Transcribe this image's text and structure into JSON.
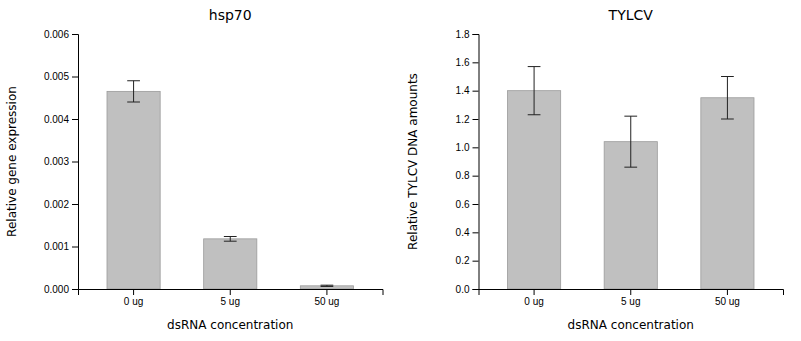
{
  "chart_data": [
    {
      "type": "bar",
      "title": "hsp70",
      "categories": [
        "0 ug",
        "5 ug",
        "50 ug"
      ],
      "values": [
        0.00465,
        0.00118,
        7.5e-05
      ],
      "errors": [
        0.00025,
        5.5e-05,
        1.5e-05
      ],
      "ylabel": "Relative gene expression",
      "xlabel": "dsRNA concentration",
      "ylim": [
        0,
        0.006
      ],
      "yticks": [
        {
          "value": 0,
          "label": "0.000"
        },
        0.001,
        0.002,
        0.003,
        0.004,
        0.005,
        0.006
      ],
      "color": "#c0c0c0",
      "grid": false
    },
    {
      "type": "bar",
      "title": "TYLCV",
      "categories": [
        "0 ug",
        "5 ug",
        "50 ug"
      ],
      "values": [
        1.4,
        1.04,
        1.35
      ],
      "errors": [
        0.17,
        0.18,
        0.15
      ],
      "ylabel": "Relative TYLCV DNA amounts",
      "xlabel": "dsRNA concentration",
      "ylim": [
        0.0,
        1.8
      ],
      "yticks": [
        {
          "value": 0,
          "label": "0.0"
        },
        0.2,
        0.4,
        0.6,
        0.8,
        {
          "value": 1,
          "label": "1.0"
        },
        1.2,
        1.4,
        1.6,
        1.8
      ],
      "color": "#c0c0c0",
      "grid": false
    }
  ]
}
